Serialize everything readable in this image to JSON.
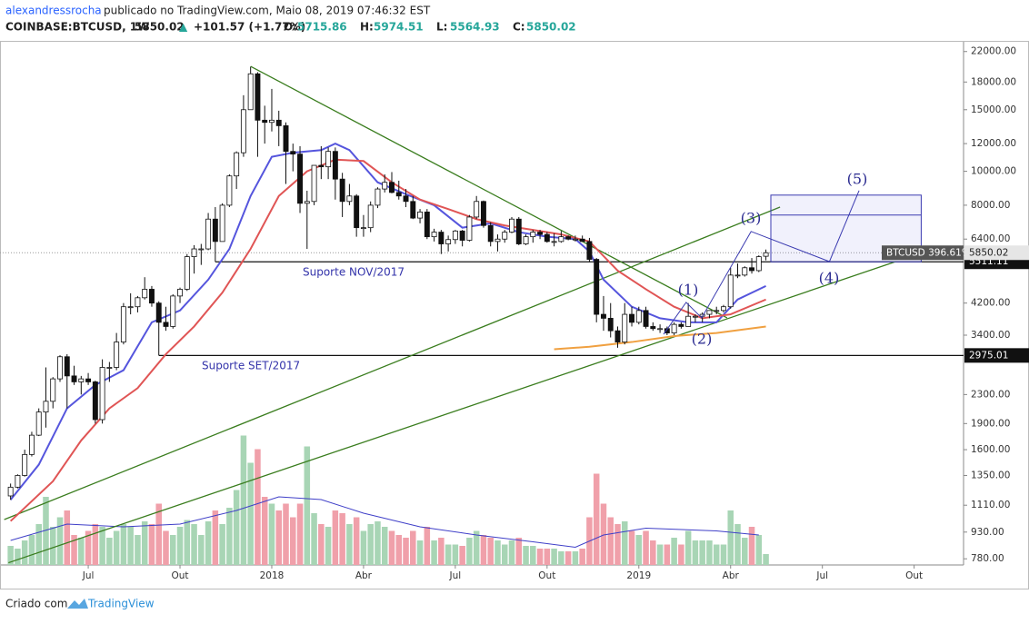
{
  "header": {
    "user": "alexandressrocha",
    "published": "publicado no TradingView.com, Maio 08, 2019 07:46:32 EST",
    "symbol": "COINBASE:BTCUSD, 1W",
    "price": "5850.02",
    "arrow": "▲",
    "change": "+101.57 (+1.77%)",
    "ohlc": [
      {
        "label": "O:",
        "value": "5715.86"
      },
      {
        "label": "H:",
        "value": "5974.51"
      },
      {
        "label": "L:",
        "value": "5564.93"
      },
      {
        "label": "C:",
        "value": "5850.02"
      }
    ]
  },
  "footer": {
    "prefix": "Criado com",
    "brand": "TradingView"
  },
  "chart_data": {
    "type": "candlestick",
    "log_scale": true,
    "grid": false,
    "up_color": "#ffffff",
    "down_color": "#111111",
    "outline_color": "#111111",
    "xlim": [
      -1.5,
      135
    ],
    "ylim": [
      749,
      23600
    ],
    "xticks": [
      {
        "value": 11,
        "label": "Jul"
      },
      {
        "value": 24,
        "label": "Out"
      },
      {
        "value": 37,
        "label": "2018"
      },
      {
        "value": 50,
        "label": "Abr"
      },
      {
        "value": 63,
        "label": "Jul"
      },
      {
        "value": 76,
        "label": "Out"
      },
      {
        "value": 89,
        "label": "2019"
      },
      {
        "value": 102,
        "label": "Abr"
      },
      {
        "value": 115,
        "label": "Jul"
      },
      {
        "value": 128,
        "label": "Out"
      }
    ],
    "yticks": [
      {
        "value": 22000,
        "label": "22000.00"
      },
      {
        "value": 18000,
        "label": "18000.00"
      },
      {
        "value": 15000,
        "label": "15000.00"
      },
      {
        "value": 12000,
        "label": "12000.00"
      },
      {
        "value": 10000,
        "label": "10000.00"
      },
      {
        "value": 8000,
        "label": "8000.00"
      },
      {
        "value": 6400,
        "label": "6400.00"
      },
      {
        "value": 4200,
        "label": "4200.00"
      },
      {
        "value": 3400,
        "label": "3400.00"
      },
      {
        "value": 2300,
        "label": "2300.00"
      },
      {
        "value": 1900,
        "label": "1900.00"
      },
      {
        "value": 1600,
        "label": "1600.00"
      },
      {
        "value": 1350,
        "label": "1350.00"
      },
      {
        "value": 1110,
        "label": "1110.00"
      },
      {
        "value": 930,
        "label": "930.00"
      },
      {
        "value": 780,
        "label": "780.00"
      }
    ],
    "candles": [
      [
        1180,
        1280,
        1150,
        1250
      ],
      [
        1250,
        1360,
        1240,
        1350
      ],
      [
        1350,
        1600,
        1340,
        1550
      ],
      [
        1550,
        1800,
        1530,
        1760
      ],
      [
        1760,
        2100,
        1750,
        2050
      ],
      [
        2050,
        2750,
        1850,
        2200
      ],
      [
        2200,
        2580,
        2100,
        2550
      ],
      [
        2550,
        2980,
        2500,
        2950
      ],
      [
        2950,
        3000,
        2100,
        2600
      ],
      [
        2600,
        2780,
        2450,
        2500
      ],
      [
        2500,
        2600,
        2300,
        2550
      ],
      [
        2550,
        2650,
        2450,
        2500
      ],
      [
        2500,
        2520,
        1900,
        1950
      ],
      [
        1950,
        2900,
        1900,
        2750
      ],
      [
        2750,
        2850,
        2500,
        2750
      ],
      [
        2750,
        3450,
        2700,
        3250
      ],
      [
        3250,
        4200,
        3200,
        4100
      ],
      [
        4100,
        4480,
        3900,
        4100
      ],
      [
        4100,
        4400,
        3950,
        4350
      ],
      [
        4350,
        4980,
        4300,
        4600
      ],
      [
        4600,
        4700,
        4100,
        4200
      ],
      [
        4200,
        4250,
        2975,
        3700
      ],
      [
        3700,
        4100,
        3500,
        3600
      ],
      [
        3600,
        4450,
        3550,
        4400
      ],
      [
        4400,
        4650,
        4200,
        4600
      ],
      [
        4600,
        5800,
        4550,
        5700
      ],
      [
        5700,
        6150,
        5100,
        6000
      ],
      [
        6000,
        6200,
        5400,
        6000
      ],
      [
        6000,
        7600,
        5950,
        7300
      ],
      [
        7300,
        7900,
        5511,
        6300
      ],
      [
        6300,
        8100,
        6300,
        8000
      ],
      [
        8000,
        9800,
        7900,
        9700
      ],
      [
        9700,
        11400,
        8900,
        11300
      ],
      [
        11300,
        16500,
        11000,
        15000
      ],
      [
        15000,
        19900,
        15000,
        19000
      ],
      [
        19000,
        19200,
        11000,
        14000
      ],
      [
        14000,
        15400,
        12000,
        13800
      ],
      [
        13800,
        17200,
        13000,
        14000
      ],
      [
        14000,
        14900,
        11800,
        13500
      ],
      [
        13500,
        13800,
        9200,
        11400
      ],
      [
        11400,
        12000,
        10000,
        11200
      ],
      [
        11200,
        11800,
        7600,
        8100
      ],
      [
        8100,
        8800,
        6000,
        8200
      ],
      [
        8200,
        10400,
        8000,
        10400
      ],
      [
        10400,
        11800,
        9500,
        10300
      ],
      [
        10300,
        11700,
        9500,
        11400
      ],
      [
        11400,
        11700,
        8300,
        9500
      ],
      [
        9500,
        9900,
        7400,
        8200
      ],
      [
        8200,
        9200,
        8000,
        8500
      ],
      [
        8500,
        8600,
        6500,
        6900
      ],
      [
        6900,
        7500,
        6500,
        6900
      ],
      [
        6900,
        8200,
        6700,
        8000
      ],
      [
        8000,
        9000,
        7850,
        8900
      ],
      [
        8900,
        9800,
        8700,
        9300
      ],
      [
        9300,
        9950,
        8650,
        8700
      ],
      [
        8700,
        9400,
        8300,
        8500
      ],
      [
        8500,
        8900,
        7900,
        8200
      ],
      [
        8200,
        8500,
        7300,
        7350
      ],
      [
        7350,
        7800,
        7100,
        7650
      ],
      [
        7650,
        7800,
        6400,
        6500
      ],
      [
        6500,
        6850,
        6300,
        6700
      ],
      [
        6700,
        6800,
        5800,
        6200
      ],
      [
        6200,
        6550,
        5900,
        6380
      ],
      [
        6380,
        6800,
        6200,
        6750
      ],
      [
        6750,
        6800,
        6100,
        6350
      ],
      [
        6350,
        7500,
        6300,
        7400
      ],
      [
        7400,
        8500,
        7300,
        8200
      ],
      [
        8200,
        8250,
        6900,
        7000
      ],
      [
        7000,
        7150,
        6100,
        6300
      ],
      [
        6300,
        6600,
        5900,
        6400
      ],
      [
        6400,
        6800,
        6250,
        6700
      ],
      [
        6700,
        7400,
        6650,
        7300
      ],
      [
        7300,
        7400,
        6150,
        6200
      ],
      [
        6200,
        6600,
        6150,
        6500
      ],
      [
        6500,
        6800,
        6250,
        6700
      ],
      [
        6700,
        6800,
        6400,
        6600
      ],
      [
        6600,
        6700,
        6250,
        6300
      ],
      [
        6300,
        6650,
        6100,
        6300
      ],
      [
        6300,
        6750,
        6250,
        6500
      ],
      [
        6500,
        6550,
        6350,
        6400
      ],
      [
        6400,
        6550,
        6300,
        6400
      ],
      [
        6400,
        6550,
        6300,
        6300
      ],
      [
        6300,
        6450,
        5500,
        5600
      ],
      [
        5600,
        5650,
        3700,
        3900
      ],
      [
        3900,
        4400,
        3500,
        3800
      ],
      [
        3800,
        4200,
        3350,
        3500
      ],
      [
        3500,
        3600,
        3130,
        3250
      ],
      [
        3250,
        4200,
        3200,
        3900
      ],
      [
        3900,
        4100,
        3600,
        3700
      ],
      [
        3700,
        4100,
        3650,
        4000
      ],
      [
        4000,
        4100,
        3550,
        3600
      ],
      [
        3600,
        3700,
        3500,
        3550
      ],
      [
        3550,
        3650,
        3450,
        3550
      ],
      [
        3550,
        3600,
        3400,
        3450
      ],
      [
        3450,
        3700,
        3400,
        3650
      ],
      [
        3650,
        3700,
        3550,
        3600
      ],
      [
        3600,
        4200,
        3600,
        3850
      ],
      [
        3850,
        3900,
        3700,
        3850
      ],
      [
        3850,
        3950,
        3700,
        3900
      ],
      [
        3900,
        4000,
        3800,
        4000
      ],
      [
        4000,
        4100,
        3900,
        4000
      ],
      [
        4000,
        4150,
        3950,
        4100
      ],
      [
        4100,
        5300,
        4050,
        5050
      ],
      [
        5050,
        5450,
        4950,
        5050
      ],
      [
        5050,
        5350,
        5000,
        5300
      ],
      [
        5300,
        5650,
        5100,
        5200
      ],
      [
        5200,
        5750,
        5150,
        5700
      ],
      [
        5715.86,
        5974.51,
        5564.93,
        5850.02
      ]
    ],
    "volume": {
      "up_color": "#a8d5b5",
      "down_color": "#f0a0aa",
      "values": [
        14,
        12,
        18,
        22,
        30,
        50,
        28,
        35,
        40,
        22,
        20,
        25,
        30,
        28,
        20,
        25,
        30,
        28,
        22,
        32,
        30,
        45,
        25,
        22,
        28,
        33,
        30,
        22,
        32,
        40,
        30,
        42,
        55,
        95,
        75,
        85,
        50,
        45,
        40,
        45,
        35,
        45,
        87,
        38,
        30,
        28,
        40,
        38,
        30,
        35,
        25,
        30,
        32,
        28,
        25,
        22,
        20,
        25,
        18,
        28,
        18,
        20,
        15,
        15,
        14,
        20,
        25,
        22,
        20,
        18,
        15,
        18,
        20,
        14,
        14,
        12,
        12,
        12,
        10,
        10,
        10,
        12,
        35,
        67,
        45,
        35,
        30,
        32,
        25,
        22,
        25,
        18,
        15,
        15,
        20,
        15,
        25,
        18,
        18,
        18,
        15,
        15,
        40,
        30,
        20,
        28,
        22,
        8
      ],
      "ma": {
        "color": "#3f3fc8",
        "points": [
          [
            0,
            18
          ],
          [
            8,
            30
          ],
          [
            16,
            28
          ],
          [
            24,
            30
          ],
          [
            32,
            40
          ],
          [
            38,
            50
          ],
          [
            44,
            48
          ],
          [
            50,
            38
          ],
          [
            58,
            28
          ],
          [
            66,
            22
          ],
          [
            74,
            17
          ],
          [
            80,
            13
          ],
          [
            84,
            22
          ],
          [
            90,
            27
          ],
          [
            100,
            25
          ],
          [
            106,
            22
          ]
        ]
      }
    },
    "moving_averages": [
      {
        "color": "#5555dd",
        "points": [
          [
            0,
            1150
          ],
          [
            4,
            1450
          ],
          [
            8,
            2100
          ],
          [
            12,
            2450
          ],
          [
            16,
            2700
          ],
          [
            20,
            3700
          ],
          [
            24,
            4000
          ],
          [
            28,
            4900
          ],
          [
            31,
            6000
          ],
          [
            34,
            8500
          ],
          [
            37,
            11000
          ],
          [
            40,
            11300
          ],
          [
            44,
            11500
          ],
          [
            46,
            12000
          ],
          [
            48,
            11500
          ],
          [
            52,
            9300
          ],
          [
            56,
            8600
          ],
          [
            60,
            8000
          ],
          [
            64,
            6900
          ],
          [
            68,
            7100
          ],
          [
            72,
            6700
          ],
          [
            76,
            6500
          ],
          [
            80,
            6400
          ],
          [
            82,
            5900
          ],
          [
            84,
            4900
          ],
          [
            88,
            4100
          ],
          [
            92,
            3800
          ],
          [
            96,
            3700
          ],
          [
            100,
            3700
          ],
          [
            103,
            4300
          ],
          [
            107,
            4700
          ]
        ]
      },
      {
        "color": "#e05555",
        "points": [
          [
            0,
            1000
          ],
          [
            6,
            1300
          ],
          [
            10,
            1700
          ],
          [
            14,
            2100
          ],
          [
            18,
            2400
          ],
          [
            22,
            3000
          ],
          [
            26,
            3600
          ],
          [
            30,
            4500
          ],
          [
            34,
            6000
          ],
          [
            38,
            8500
          ],
          [
            42,
            10000
          ],
          [
            46,
            10800
          ],
          [
            50,
            10700
          ],
          [
            54,
            9300
          ],
          [
            58,
            8300
          ],
          [
            62,
            7800
          ],
          [
            66,
            7300
          ],
          [
            70,
            7000
          ],
          [
            74,
            6800
          ],
          [
            78,
            6600
          ],
          [
            82,
            6300
          ],
          [
            86,
            5200
          ],
          [
            90,
            4600
          ],
          [
            94,
            4100
          ],
          [
            98,
            3800
          ],
          [
            102,
            3900
          ],
          [
            107,
            4300
          ]
        ]
      },
      {
        "color": "#f0a040",
        "points": [
          [
            77,
            3100
          ],
          [
            82,
            3150
          ],
          [
            88,
            3250
          ],
          [
            94,
            3380
          ],
          [
            100,
            3450
          ],
          [
            107,
            3600
          ]
        ]
      }
    ],
    "trendlines": {
      "color": "#3a7d1e",
      "lines": [
        [
          [
            34,
            19950
          ],
          [
            101.5,
            3810
          ]
        ],
        [
          [
            -0.9,
            1010
          ],
          [
            109,
            7900
          ]
        ],
        [
          [
            -0.3,
            760
          ],
          [
            125.4,
            5520
          ]
        ]
      ]
    },
    "levels": [
      {
        "value": 5511.11,
        "start": 29,
        "label": "Suporte NOV/2017"
      },
      {
        "value": 2975.01,
        "start": 21,
        "label": "Suporte SET/2017"
      }
    ],
    "last_price": {
      "value": 5850.02,
      "tag": "BTCUSD 396.61%"
    },
    "waves": {
      "color": "#3a3ab0",
      "points": [
        [
          92.5,
          3420
        ],
        [
          95.7,
          4220
        ],
        [
          97.9,
          3810
        ],
        [
          104.9,
          6730
        ],
        [
          116,
          5520
        ],
        [
          120.2,
          8810
        ]
      ],
      "labels": [
        "(1)",
        "(2)",
        "(3)",
        "(4)",
        "(5)"
      ],
      "box": {
        "x": [
          107.7,
          129
        ],
        "y": [
          5511.11,
          8550
        ],
        "mid": 7500
      }
    }
  }
}
